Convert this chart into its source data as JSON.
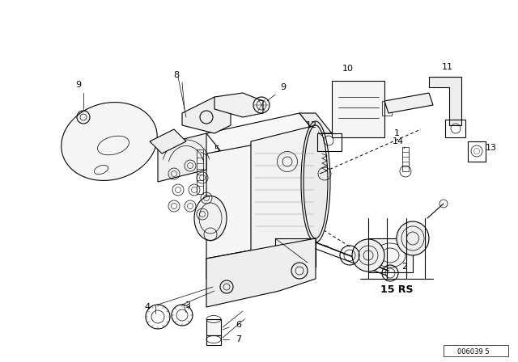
{
  "background_color": "#ffffff",
  "line_color": "#000000",
  "doc_number": "006039 5",
  "figsize": [
    6.4,
    4.48
  ],
  "dpi": 100
}
